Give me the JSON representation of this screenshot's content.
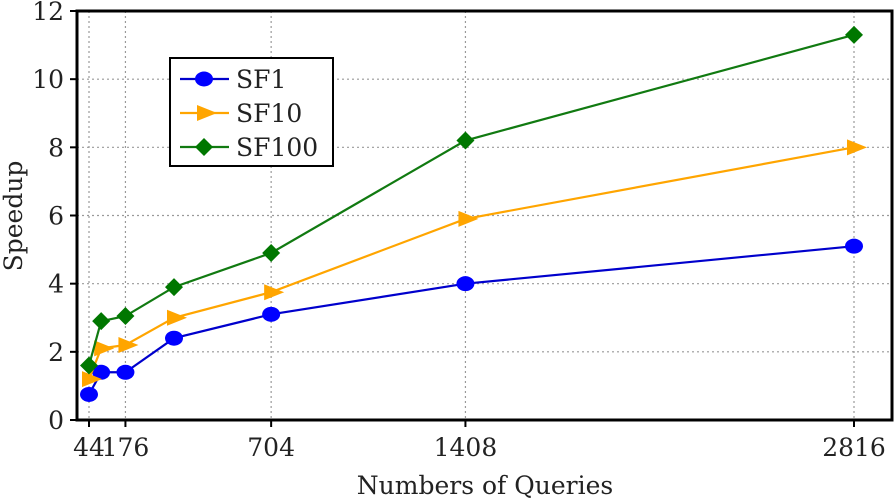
{
  "chart_data": {
    "type": "line",
    "title": "",
    "xlabel": "Numbers of Queries",
    "ylabel": "Speedup",
    "x": [
      44,
      88,
      176,
      352,
      704,
      1408,
      2816
    ],
    "xticks": [
      44,
      176,
      704,
      1408,
      2816
    ],
    "xtick_labels": [
      "44",
      "176",
      "704",
      "1408",
      "2816"
    ],
    "xlim": [
      0,
      2816
    ],
    "ylim": [
      0,
      12
    ],
    "yticks": [
      0,
      2,
      4,
      6,
      8,
      10,
      12
    ],
    "ytick_labels": [
      "0",
      "2",
      "4",
      "6",
      "8",
      "10",
      "12"
    ],
    "grid": true,
    "legend_placement": "upper-left",
    "series": [
      {
        "name": "SF1",
        "color": "#0000ff",
        "line_color": "#0000cc",
        "marker": "circle",
        "values": [
          0.75,
          1.4,
          1.4,
          2.4,
          3.1,
          4.0,
          5.1
        ]
      },
      {
        "name": "SF10",
        "color": "#ffa500",
        "line_color": "#ffa500",
        "marker": "triangle-right",
        "values": [
          1.2,
          2.1,
          2.2,
          3.0,
          3.75,
          5.9,
          8.0
        ]
      },
      {
        "name": "SF100",
        "color": "#007700",
        "line_color": "#117a11",
        "marker": "diamond",
        "values": [
          1.6,
          2.9,
          3.05,
          3.9,
          4.9,
          8.2,
          11.3
        ]
      }
    ]
  }
}
